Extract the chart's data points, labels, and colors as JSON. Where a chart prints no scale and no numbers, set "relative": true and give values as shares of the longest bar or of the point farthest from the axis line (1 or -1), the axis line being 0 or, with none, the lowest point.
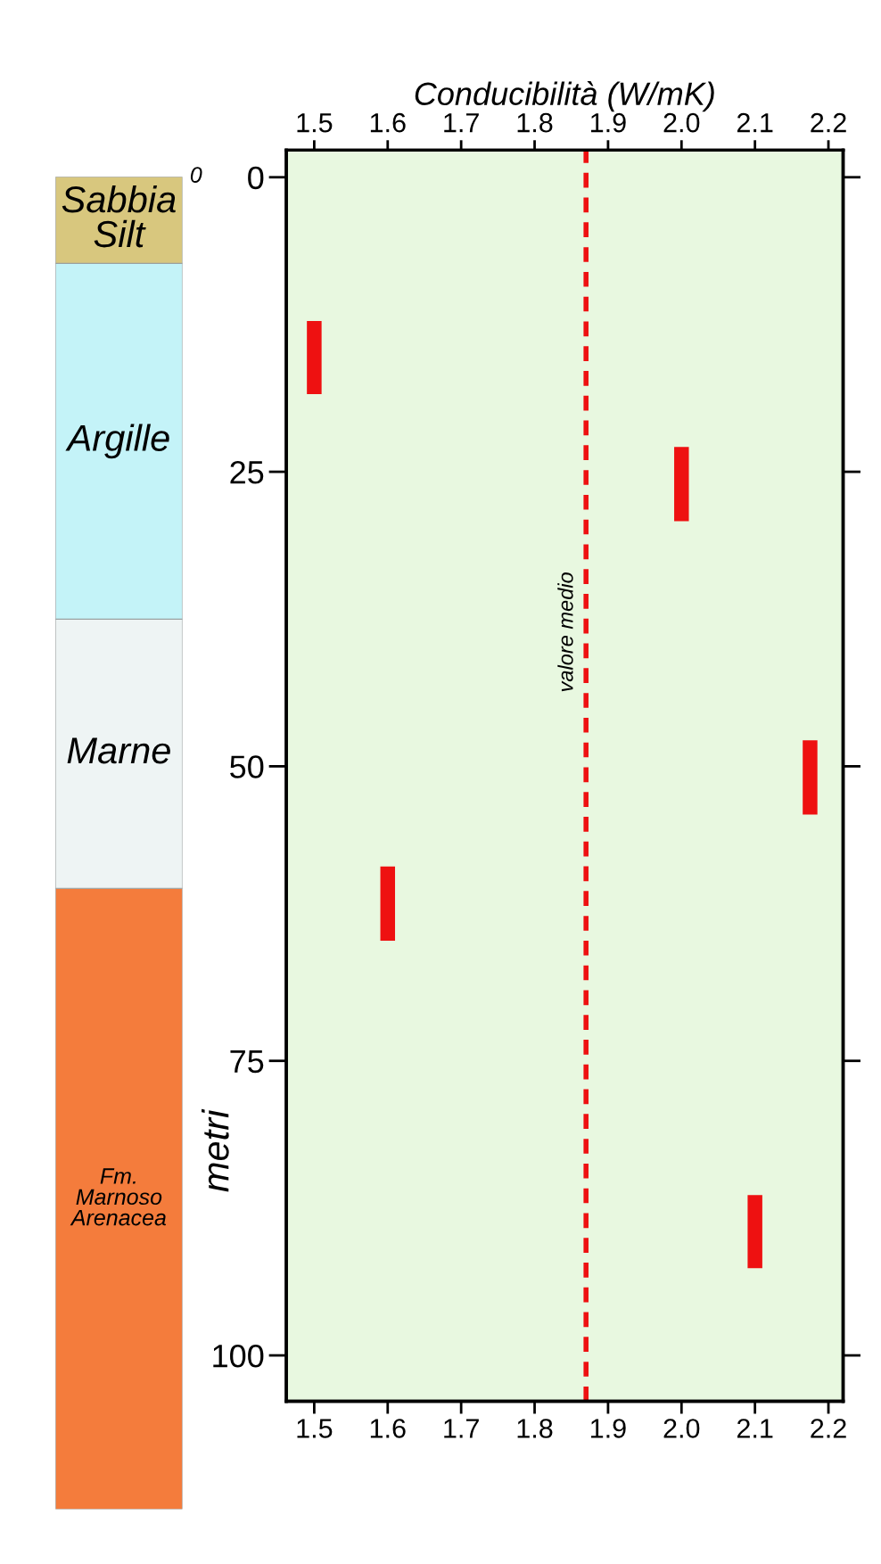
{
  "chart_data": [
    {
      "type": "bar",
      "stacked": true,
      "relative": true,
      "categories": [
        null
      ],
      "annotations": [
        "0"
      ],
      "series": [
        {
          "name": "Fm.\nMarnoso\nArenacea",
          "color": "#f47c3c",
          "values": [
            0.466
          ]
        },
        {
          "name": "Marne",
          "color": "#eef4f4",
          "values": [
            0.202
          ]
        },
        {
          "name": "Argille",
          "color": "#c4f3f8",
          "values": [
            0.267
          ]
        },
        {
          "name": "Sabbia\nSilt",
          "color": "#d8c77e",
          "values": [
            0.065
          ]
        }
      ]
    },
    {
      "type": "bar",
      "x": [
        1.5,
        1.6,
        2.0,
        2.1,
        2.175
      ],
      "base": [
        12.2,
        58.5,
        22.9,
        86.4,
        47.8
      ],
      "values": [
        6.2,
        6.3,
        6.3,
        6.2,
        6.3
      ],
      "color": "#ee1111",
      "xlim": [
        1.462,
        2.22
      ],
      "xticks": [
        {
          "value": 1.5,
          "label": "1.5"
        },
        {
          "value": 1.6,
          "label": "1.6"
        },
        {
          "value": 1.7,
          "label": "1.7"
        },
        {
          "value": 1.8,
          "label": "1.8"
        },
        {
          "value": 1.9,
          "label": "1.9"
        },
        {
          "value": 2.0,
          "label": "2.0"
        },
        {
          "value": 2.1,
          "label": "2.1"
        },
        {
          "value": 2.2,
          "label": "2.2"
        }
      ],
      "x2lim": [
        1.462,
        2.22
      ],
      "x2ticks": [
        {
          "value": 1.5,
          "label": "1.5"
        },
        {
          "value": 1.6,
          "label": "1.6"
        },
        {
          "value": 1.7,
          "label": "1.7"
        },
        {
          "value": 1.8,
          "label": "1.8"
        },
        {
          "value": 1.9,
          "label": "1.9"
        },
        {
          "value": 2.0,
          "label": "2.0"
        },
        {
          "value": 2.1,
          "label": "2.1"
        },
        {
          "value": 2.2,
          "label": "2.2"
        }
      ],
      "x2label": "Conducibilità (W/mK)",
      "ylabel": "metri",
      "ylim": [
        103.9,
        -2.3
      ],
      "yticks": [
        0,
        25,
        50,
        75,
        100
      ],
      "ref_lines": [
        {
          "axis": "x",
          "value": 1.87,
          "label": "valore medio",
          "color": "#ee1111",
          "line_style": "dashed"
        }
      ],
      "grid": false
    }
  ]
}
